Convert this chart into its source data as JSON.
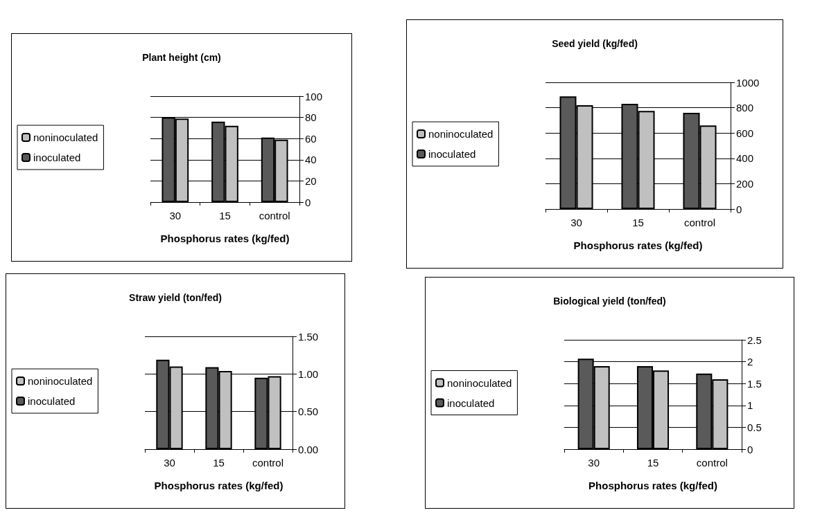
{
  "chart_data": [
    {
      "type": "bar",
      "title": "Plant height (cm)",
      "xlabel": "Phosphorus rates (kg/fed)",
      "categories": [
        "30",
        "15",
        "control"
      ],
      "series": [
        {
          "name": "inoculated",
          "color": "#5a5a5a",
          "values": [
            80,
            76,
            61
          ]
        },
        {
          "name": "noninoculated",
          "color": "#c0c0c0",
          "values": [
            79,
            72,
            59
          ]
        }
      ],
      "ylim": [
        0,
        100
      ],
      "yticks": [
        0,
        20,
        40,
        60,
        80,
        100
      ],
      "grid": "y",
      "legend": "left"
    },
    {
      "type": "bar",
      "title": "Seed yield (kg/fed)",
      "xlabel": "Phosphorus rates (kg/fed)",
      "categories": [
        "30",
        "15",
        "control"
      ],
      "series": [
        {
          "name": "inoculated",
          "color": "#5a5a5a",
          "values": [
            890,
            830,
            760
          ]
        },
        {
          "name": "noninoculated",
          "color": "#c0c0c0",
          "values": [
            820,
            775,
            660
          ]
        }
      ],
      "ylim": [
        0,
        1000
      ],
      "yticks": [
        0,
        200,
        400,
        600,
        800,
        1000
      ],
      "grid": "y",
      "legend": "left"
    },
    {
      "type": "bar",
      "title": "Straw yield (ton/fed)",
      "xlabel": "Phosphorus rates (kg/fed)",
      "categories": [
        "30",
        "15",
        "control"
      ],
      "series": [
        {
          "name": "inoculated",
          "color": "#5a5a5a",
          "values": [
            1.19,
            1.09,
            0.95
          ]
        },
        {
          "name": "noninoculated",
          "color": "#c0c0c0",
          "values": [
            1.1,
            1.04,
            0.97
          ]
        }
      ],
      "ylim": [
        0,
        1.5
      ],
      "yticks": [
        {
          "value": 0,
          "label": "0.00"
        },
        {
          "value": 0.5,
          "label": "0.50"
        },
        {
          "value": 1,
          "label": "1.00"
        },
        {
          "value": 1.5,
          "label": "1.50"
        }
      ],
      "grid": "y",
      "legend": "left"
    },
    {
      "type": "bar",
      "title": "Biological yield (ton/fed)",
      "xlabel": "Phosphorus rates (kg/fed)",
      "categories": [
        "30",
        "15",
        "control"
      ],
      "series": [
        {
          "name": "inoculated",
          "color": "#5a5a5a",
          "values": [
            2.07,
            1.9,
            1.73
          ]
        },
        {
          "name": "noninoculated",
          "color": "#c0c0c0",
          "values": [
            1.9,
            1.8,
            1.6
          ]
        }
      ],
      "ylim": [
        0,
        2.5
      ],
      "yticks": [
        0,
        0.5,
        1,
        1.5,
        2,
        2.5
      ],
      "grid": "y",
      "legend": "left"
    }
  ]
}
